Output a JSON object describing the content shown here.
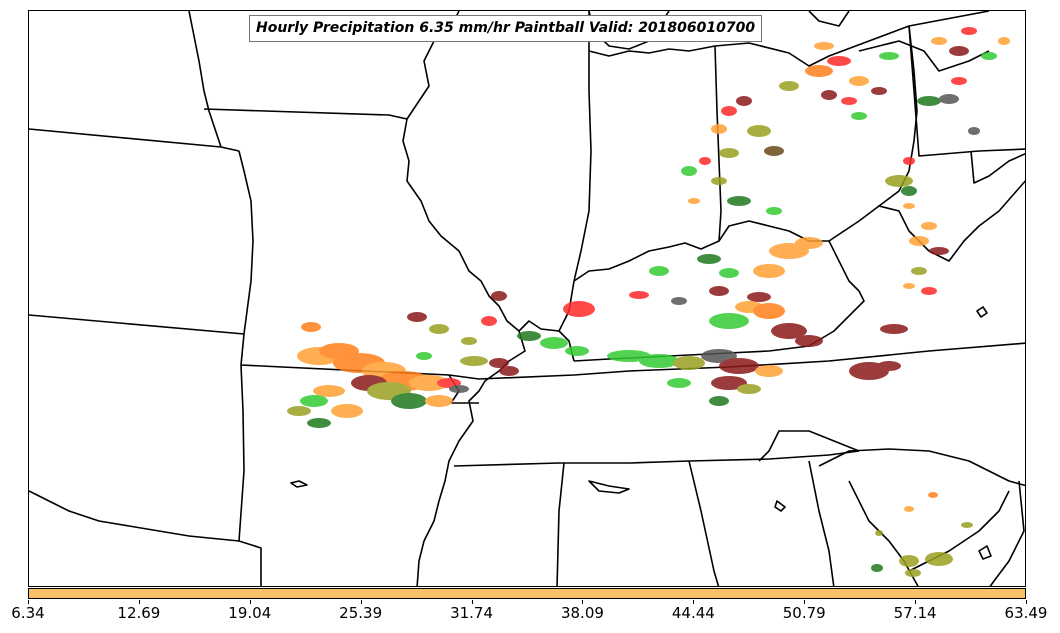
{
  "title": "Hourly Precipitation 6.35 mm/hr Paintball Valid: 201806010700",
  "colors": {
    "background": "#ffffff",
    "borders": "#000000",
    "colorbar_fill": "#f9c06a",
    "paintball_palette": [
      "#ff2a2a",
      "#ff7f1a",
      "#ffa033",
      "#33cc33",
      "#1f7a1f",
      "#8b1a1a",
      "#9aa020",
      "#555555",
      "#6b4a1a"
    ]
  },
  "colorbar": {
    "ticks": [
      "6.34",
      "12.69",
      "19.04",
      "25.39",
      "31.74",
      "38.09",
      "44.44",
      "50.79",
      "57.14",
      "63.49"
    ]
  }
}
